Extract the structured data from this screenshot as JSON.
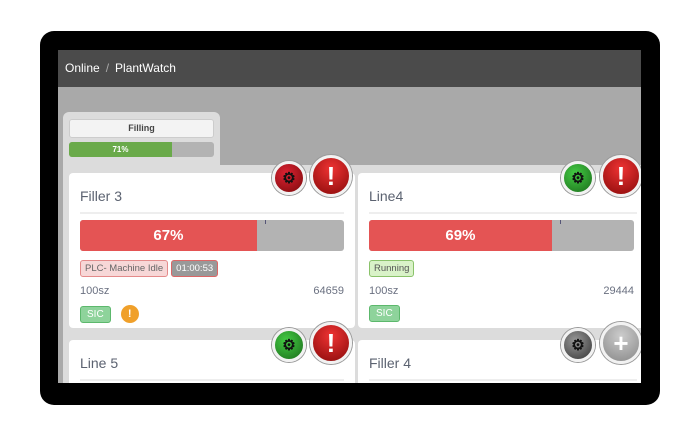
{
  "header": {
    "items": [
      "Online",
      "PlantWatch"
    ],
    "separator": "/"
  },
  "tab": {
    "label": "Filling",
    "progress_label": "71%",
    "progress": 71
  },
  "cards": [
    {
      "title": "Filler 3",
      "progress_label": "67%",
      "progress": 67,
      "bar_color": "#e45454",
      "status": "PLC- Machine Idle",
      "timer": "01:00:53",
      "size": "100sz",
      "count": "64659",
      "tag": "SIC",
      "warning": "!",
      "gear_color": "red",
      "alert": "!"
    },
    {
      "title": "Line4",
      "progress_label": "69%",
      "progress": 69,
      "bar_color": "#e45454",
      "status": "Running",
      "size": "100sz",
      "count": "29444",
      "tag": "SIC",
      "gear_color": "green",
      "alert": "!"
    },
    {
      "title": "Line 5",
      "bar_color": "#6aaa4a",
      "gear_color": "green",
      "alert": "!"
    },
    {
      "title": "Filler 4",
      "gear_color": "gray",
      "alert": "+"
    }
  ]
}
